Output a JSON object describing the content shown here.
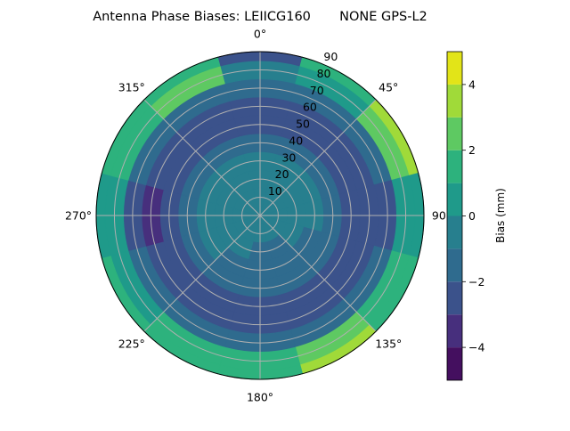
{
  "chart_data": {
    "type": "heatmap",
    "subtype": "polar-filled-contour",
    "title": "Antenna Phase Biases: LEIICG160       NONE GPS-L2",
    "theta_direction": "clockwise",
    "theta_zero": "north",
    "theta_tick_labels": [
      "0°",
      "45°",
      "90°",
      "135°",
      "180°",
      "225°",
      "270°",
      "315°"
    ],
    "theta_ticks": [
      0,
      45,
      90,
      135,
      180,
      225,
      270,
      315
    ],
    "r_ticks": [
      10,
      20,
      30,
      40,
      50,
      60,
      70,
      80,
      90
    ],
    "r_tick_labels": [
      "10",
      "20",
      "30",
      "40",
      "50",
      "60",
      "70",
      "80",
      "90"
    ],
    "rlim": [
      0,
      90
    ],
    "grid": true,
    "azimuth": [
      0,
      30,
      60,
      90,
      120,
      150,
      180,
      210,
      240,
      270,
      300,
      330
    ],
    "zenith": [
      0,
      10,
      20,
      30,
      40,
      50,
      60,
      70,
      80,
      90
    ],
    "values": [
      [
        -0.5,
        -0.5,
        -0.5,
        -0.5,
        -0.5,
        -0.5,
        -0.5,
        -0.5,
        -0.5,
        -0.5,
        -0.5,
        -0.5
      ],
      [
        -0.5,
        -0.5,
        -0.5,
        -0.5,
        -0.5,
        -0.5,
        -0.5,
        -0.5,
        -0.5,
        -0.5,
        -0.5,
        -0.5
      ],
      [
        -0.5,
        -0.5,
        -0.5,
        -0.5,
        -0.5,
        -1.5,
        -1.5,
        -0.5,
        -0.5,
        -0.5,
        -0.5,
        -0.5
      ],
      [
        -0.5,
        -0.5,
        -0.5,
        -0.5,
        -1.5,
        -1.5,
        -1.5,
        -1.5,
        -0.5,
        -0.5,
        -0.5,
        -0.5
      ],
      [
        -1.5,
        -1.5,
        -1.5,
        -1.5,
        -1.5,
        -1.5,
        -1.5,
        -1.5,
        -1.5,
        -1.5,
        -1.5,
        -1.5
      ],
      [
        -2.5,
        -2.5,
        -2.5,
        -2.5,
        -2.5,
        -2.5,
        -2.5,
        -2.5,
        -2.5,
        -2.5,
        -2.5,
        -2.5
      ],
      [
        -2.5,
        -2.5,
        -2.5,
        -2.5,
        -2.5,
        -2.5,
        -2.5,
        -2.5,
        -2.5,
        -3.5,
        -2.5,
        -2.5
      ],
      [
        -1.5,
        -1.5,
        -1.5,
        -2.5,
        -1.5,
        -1.5,
        -1.5,
        -1.5,
        -1.5,
        -2.5,
        -1.5,
        -1.5
      ],
      [
        -0.5,
        0.5,
        2.5,
        0.5,
        1.5,
        2.5,
        1.5,
        1.5,
        0.5,
        0.5,
        1.5,
        2.5
      ],
      [
        -2.5,
        1.5,
        3.5,
        0.5,
        1.5,
        3.5,
        1.5,
        1.5,
        1.5,
        0.5,
        1.5,
        1.5
      ]
    ],
    "levels": [
      -5,
      -4,
      -3,
      -2,
      -1,
      0,
      1,
      2,
      3,
      4,
      5
    ],
    "colors": [
      "#440f5f",
      "#472f7d",
      "#3b528b",
      "#2f6b8e",
      "#277f8e",
      "#1f9a8a",
      "#2db27d",
      "#5ec962",
      "#a0da39",
      "#e2e418"
    ],
    "colorbar": {
      "label": "Bias (mm)",
      "ticks": [
        -4,
        -2,
        0,
        2,
        4
      ],
      "tick_labels": [
        "−4",
        "−2",
        "0",
        "2",
        "4"
      ],
      "range": [
        -5,
        5
      ],
      "placement": "right"
    }
  }
}
